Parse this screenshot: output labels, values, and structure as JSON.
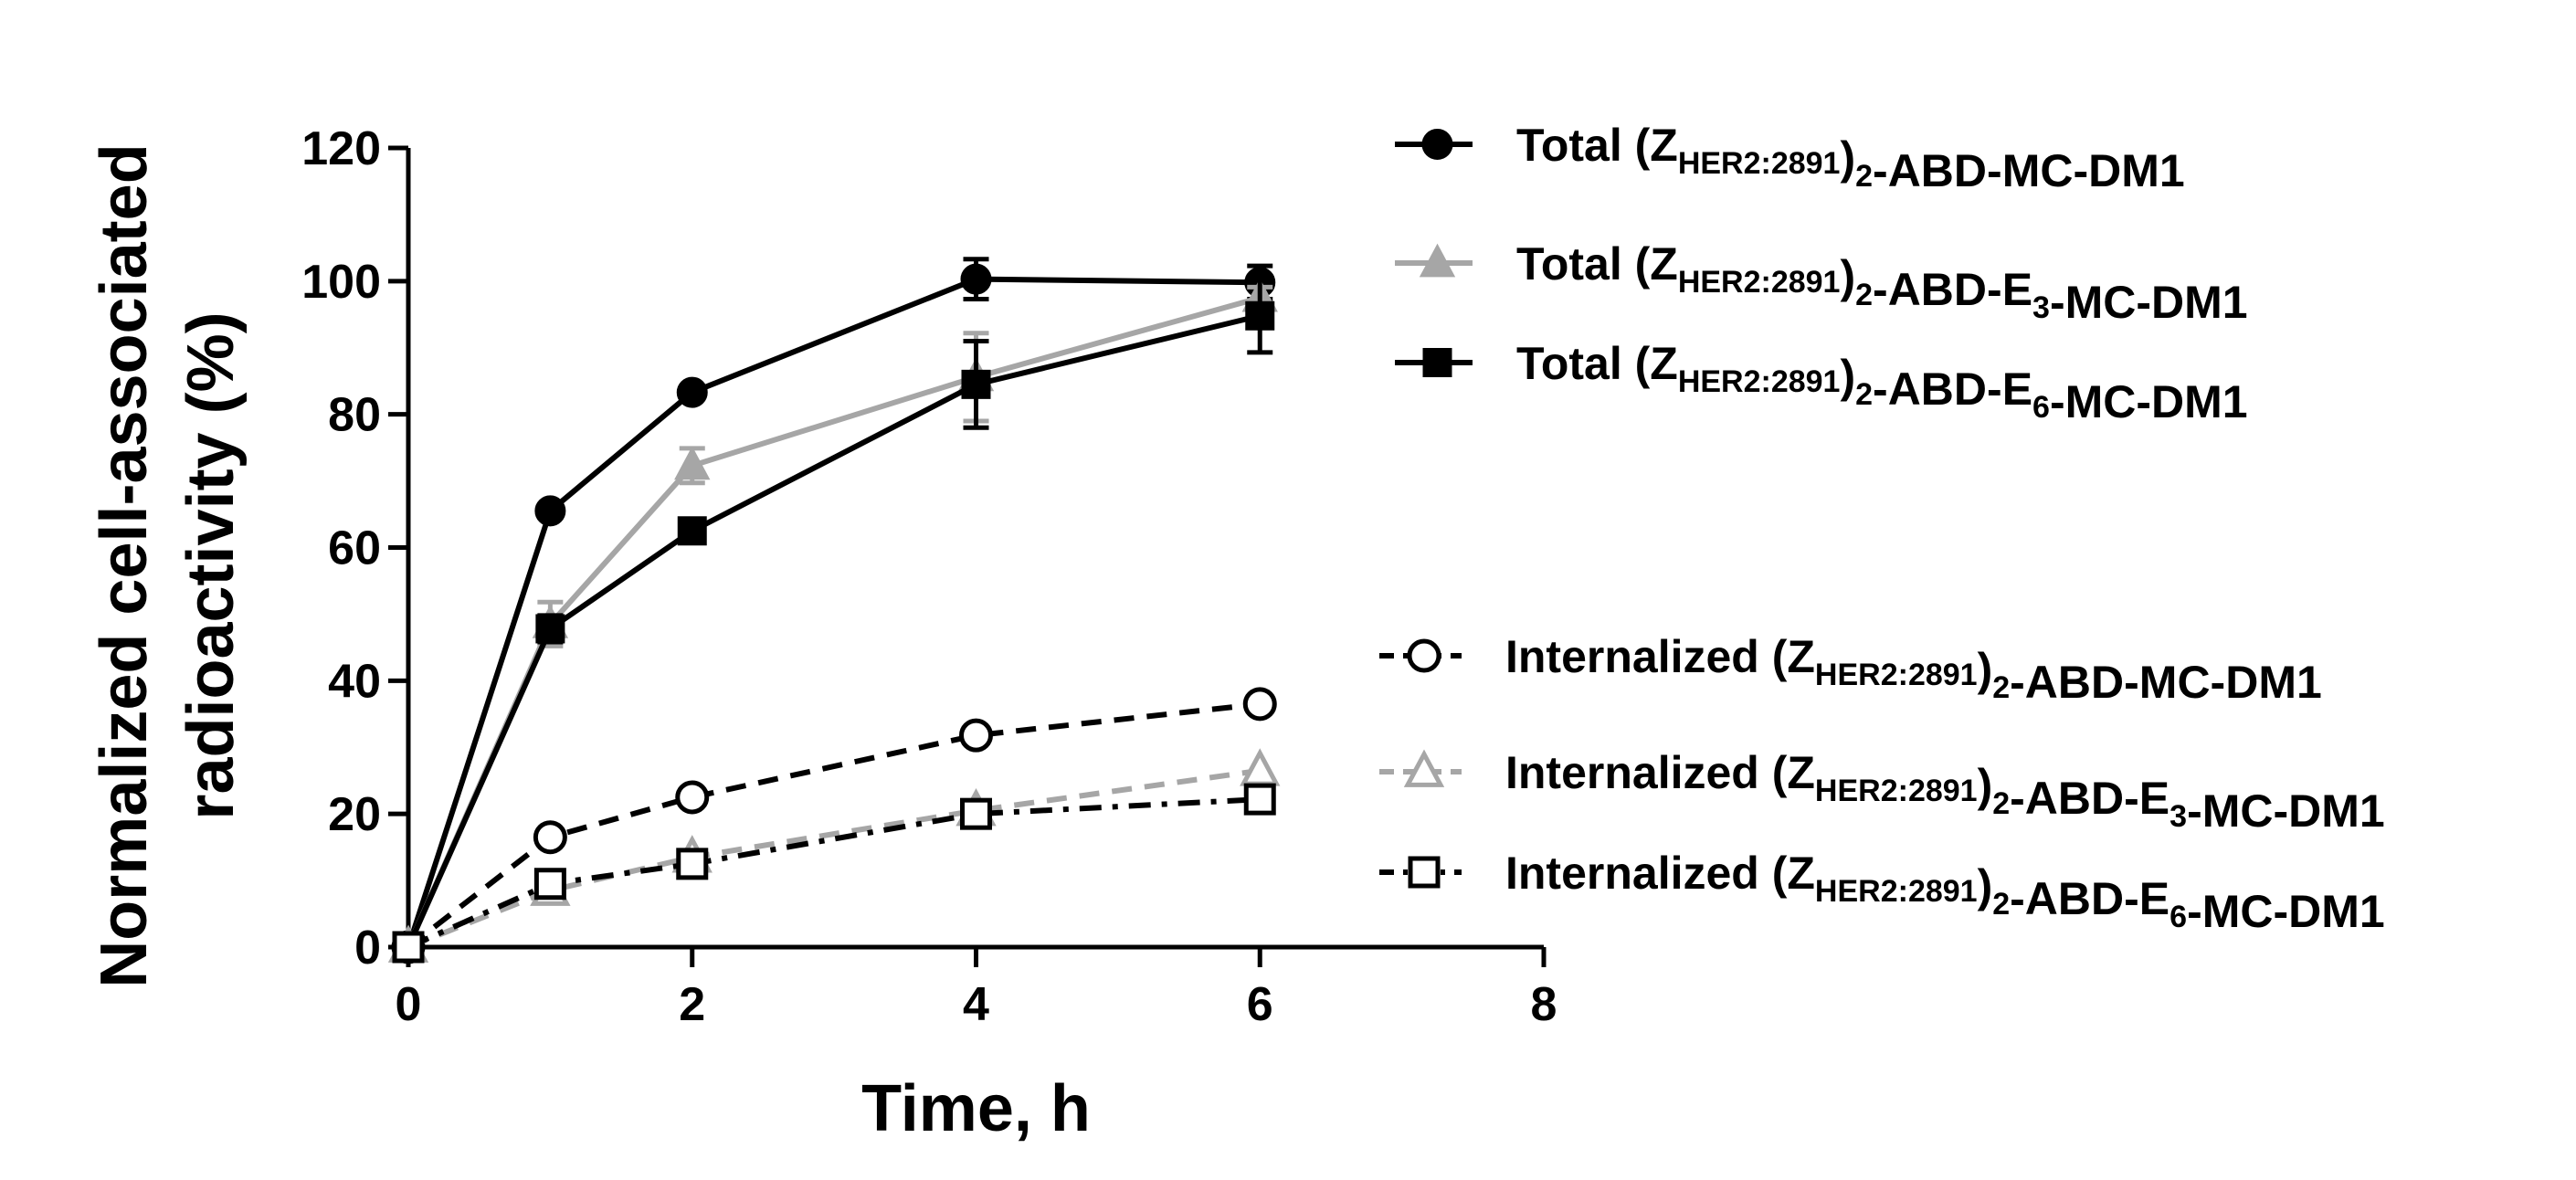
{
  "chart_data": {
    "type": "line",
    "xlabel": "Time, h",
    "ylabel_line1": "Normalized cell-associated",
    "ylabel_line2": "radioactivity (%)",
    "xlim": [
      0,
      8
    ],
    "ylim": [
      0,
      120
    ],
    "x_ticks": [
      0,
      2,
      4,
      6,
      8
    ],
    "y_ticks": [
      0,
      20,
      40,
      60,
      80,
      100,
      120
    ],
    "grid": false,
    "legend_position": "right",
    "series": [
      {
        "id": "total-mc",
        "prefix": "Total (Z",
        "sub1": "HER2:2891",
        "mid": ")",
        "sub2": "2",
        "suffix": "-ABD-",
        "ele": "",
        "eleSub": "",
        "tail": "MC-DM1",
        "x": [
          0,
          1,
          2,
          4,
          6
        ],
        "values": [
          0,
          65.5,
          83.3,
          100.3,
          99.8
        ],
        "errors": [
          0,
          0,
          0,
          3.0,
          2.5
        ],
        "color": "#000000",
        "marker": "circle-filled",
        "dash": "solid"
      },
      {
        "id": "total-e3",
        "prefix": "Total (Z",
        "sub1": "HER2:2891",
        "mid": ")",
        "sub2": "2",
        "suffix": "-ABD-",
        "ele": "E",
        "eleSub": "3",
        "tail": "-MC-DM1",
        "x": [
          0,
          1,
          2,
          4,
          6
        ],
        "values": [
          0,
          48.5,
          72.3,
          85.6,
          97.5
        ],
        "errors": [
          0,
          3.3,
          2.6,
          6.6,
          1.6
        ],
        "color": "#a6a6a6",
        "marker": "triangle-filled",
        "dash": "solid"
      },
      {
        "id": "total-e6",
        "prefix": "Total (Z",
        "sub1": "HER2:2891",
        "mid": ")",
        "sub2": "2",
        "suffix": "-ABD-",
        "ele": "E",
        "eleSub": "6",
        "tail": "-MC-DM1",
        "x": [
          0,
          1,
          2,
          4,
          6
        ],
        "values": [
          0,
          47.8,
          62.5,
          84.5,
          94.8
        ],
        "errors": [
          0,
          2.0,
          1.0,
          6.5,
          5.5
        ],
        "color": "#000000",
        "marker": "square-filled",
        "dash": "solid"
      },
      {
        "id": "int-mc",
        "prefix": "Internalized (Z",
        "sub1": "HER2:2891",
        "mid": ")",
        "sub2": "2",
        "suffix": "-ABD-",
        "ele": "",
        "eleSub": "",
        "tail": "MC-DM1",
        "x": [
          0,
          1,
          2,
          4,
          6
        ],
        "values": [
          0,
          16.5,
          22.5,
          31.8,
          36.5
        ],
        "errors": [
          0,
          0,
          0,
          0,
          0
        ],
        "color": "#000000",
        "marker": "circle-open",
        "dash": "dashed"
      },
      {
        "id": "int-e3",
        "prefix": "Internalized (Z",
        "sub1": "HER2:2891",
        "mid": ")",
        "sub2": "2",
        "suffix": "-ABD-",
        "ele": "E",
        "eleSub": "3",
        "tail": "-MC-DM1",
        "x": [
          0,
          1,
          2,
          4,
          6
        ],
        "values": [
          0,
          8.5,
          13.5,
          20.5,
          26.5
        ],
        "errors": [
          0,
          0,
          0,
          0,
          0
        ],
        "color": "#a6a6a6",
        "marker": "triangle-open",
        "dash": "dashed"
      },
      {
        "id": "int-e6",
        "prefix": "Internalized (Z",
        "sub1": "HER2:2891",
        "mid": ")",
        "sub2": "2",
        "suffix": "-ABD-",
        "ele": "E",
        "eleSub": "6",
        "tail": "-MC-DM1",
        "x": [
          0,
          1,
          2,
          4,
          6
        ],
        "values": [
          0,
          9.5,
          12.5,
          20.0,
          22.2
        ],
        "errors": [
          0,
          0,
          0,
          0,
          0
        ],
        "color": "#000000",
        "marker": "square-open",
        "dash": "dashdot"
      }
    ]
  }
}
